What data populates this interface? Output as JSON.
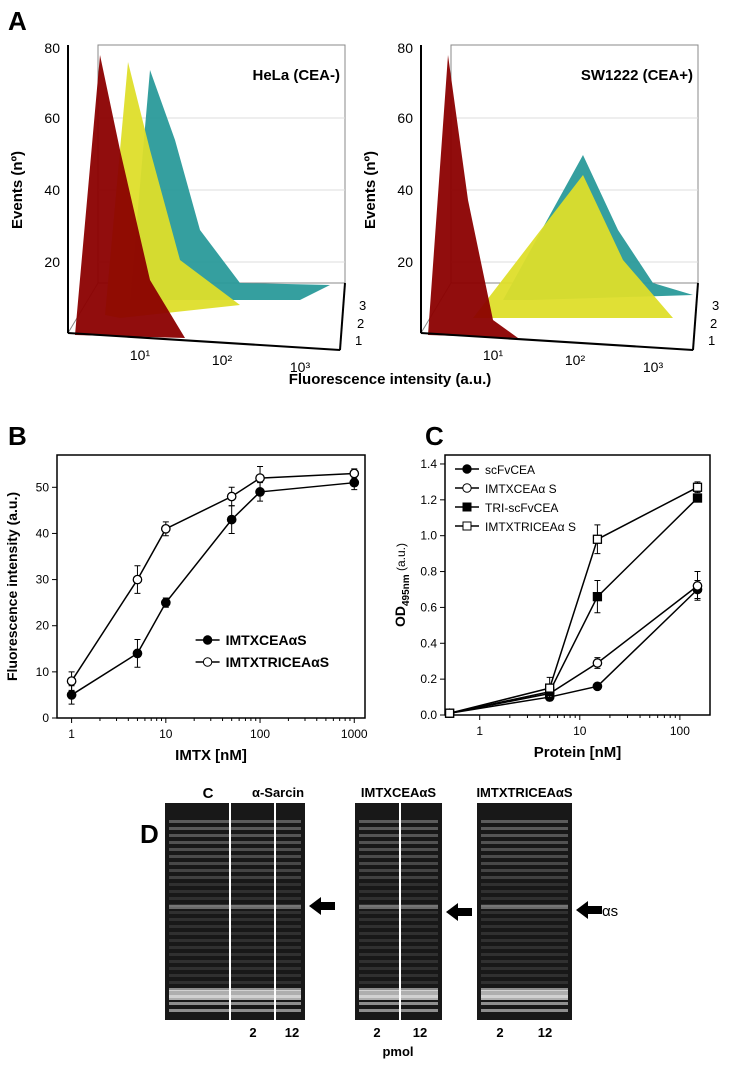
{
  "panel_labels": [
    "A",
    "B",
    "C",
    "D"
  ],
  "panel_a": {
    "xlabel": "Fluorescence intensity (a.u.)",
    "plots": [
      {
        "title": "HeLa (CEA-)",
        "ylabel": "Events (nº)",
        "yticks": [
          "20",
          "40",
          "60",
          "80"
        ],
        "xticks": [
          "10¹",
          "10²",
          "10³"
        ],
        "depth_ticks": [
          "1",
          "2",
          "3"
        ]
      },
      {
        "title": "SW1222 (CEA+)",
        "ylabel": "Events (nº)",
        "yticks": [
          "20",
          "40",
          "60",
          "80"
        ],
        "xticks": [
          "10¹",
          "10²",
          "10³"
        ],
        "depth_ticks": [
          "1",
          "2",
          "3"
        ]
      }
    ]
  },
  "chart_data": [
    {
      "type": "line",
      "xlabel": "IMTX [nM]",
      "ylabel": "Fluorescence intensity (a.u.)",
      "log_x": true,
      "legend": "lower right",
      "x": [
        1,
        5,
        10,
        50,
        100,
        1000
      ],
      "xlim": [
        0.7,
        1300
      ],
      "xticks": [
        1,
        10,
        100,
        1000
      ],
      "ylim": [
        0,
        57
      ],
      "yticks": [
        0,
        10,
        20,
        30,
        40,
        50
      ],
      "series": [
        {
          "name": "IMTXCEAαS",
          "color": "#000000",
          "marker": "circle",
          "filled": true,
          "values": [
            5,
            14,
            25,
            43,
            49,
            51
          ],
          "errors": [
            2,
            3,
            1,
            3,
            2,
            1.5
          ]
        },
        {
          "name": "IMTXTRICEAαS",
          "color": "#000000",
          "marker": "circle",
          "filled": false,
          "values": [
            8,
            30,
            41,
            48,
            52,
            53
          ],
          "errors": [
            2,
            3,
            1.5,
            2,
            2.5,
            1
          ]
        }
      ]
    },
    {
      "type": "line",
      "xlabel": "Protein [nM]",
      "ylabel": "OD",
      "ylabel_sub": "495nm",
      "ylabel_unit": "(a.u.)",
      "log_x": true,
      "legend": "upper left",
      "x": [
        0.5,
        5,
        15,
        150
      ],
      "xlim": [
        0.45,
        200
      ],
      "xticks": [
        1,
        10,
        100
      ],
      "ylim": [
        0,
        1.45
      ],
      "yticks": [
        {
          "value": 0,
          "label": "0.0"
        },
        0.2,
        0.4,
        0.6,
        0.8,
        {
          "value": 1,
          "label": "1.0"
        },
        1.2,
        1.4
      ],
      "series": [
        {
          "name": "scFvCEA",
          "color": "#000000",
          "marker": "circle",
          "filled": true,
          "values": [
            0.01,
            0.1,
            0.16,
            0.7
          ],
          "errors": [
            0.01,
            0.02,
            0.01,
            0.05
          ]
        },
        {
          "name": "IMTXCEAα S",
          "color": "#000000",
          "marker": "circle",
          "filled": false,
          "values": [
            0.01,
            0.12,
            0.29,
            0.72
          ],
          "errors": [
            0.01,
            0.03,
            0.03,
            0.08
          ]
        },
        {
          "name": "TRI-scFvCEA",
          "color": "#000000",
          "marker": "square",
          "filled": true,
          "values": [
            0.01,
            0.13,
            0.66,
            1.21
          ],
          "errors": [
            0.01,
            0.04,
            0.09,
            0.02
          ]
        },
        {
          "name": "IMTXTRICEAα S",
          "color": "#000000",
          "marker": "square",
          "filled": false,
          "values": [
            0.01,
            0.15,
            0.98,
            1.27
          ],
          "errors": [
            0.01,
            0.06,
            0.08,
            0.03
          ]
        }
      ]
    }
  ],
  "panel_d": {
    "control": "C",
    "unit": "pmol",
    "band": "αs",
    "groups": [
      {
        "title": "α-Sarcin",
        "lanes": [
          "2",
          "12"
        ]
      },
      {
        "title": "IMTXCEAαS",
        "lanes": [
          "2",
          "12"
        ]
      },
      {
        "title": "IMTXTRICEAαS",
        "lanes": [
          "2",
          "12"
        ]
      }
    ]
  }
}
